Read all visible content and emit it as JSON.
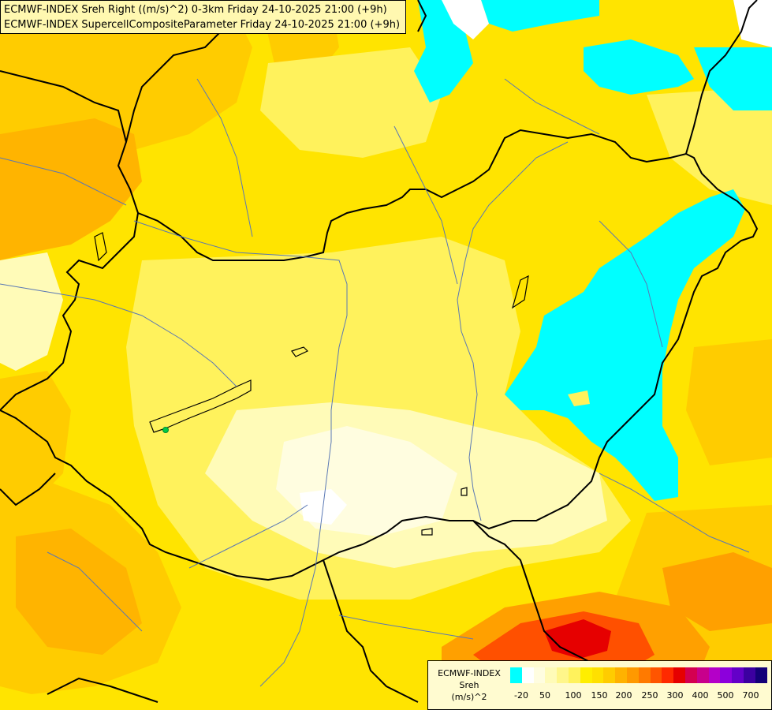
{
  "title": {
    "line1": "ECMWF-INDEX Sreh Right ((m/s)^2) 0-3km Friday 24-10-2025 21:00 (+9h)",
    "line2": "ECMWF-INDEX SupercellCompositeParameter Friday 24-10-2025 21:00 (+9h)"
  },
  "legend": {
    "line1": "ECMWF-INDEX",
    "line2": "Sreh",
    "line3": "(m/s)^2",
    "ticks": [
      "-20",
      "50",
      "100",
      "150",
      "200",
      "250",
      "300",
      "400",
      "500",
      "700"
    ],
    "colors": [
      "#00ffff",
      "#ffffff",
      "#fffde0",
      "#fffbb8",
      "#fff68a",
      "#fff25c",
      "#ffee00",
      "#ffe000",
      "#ffcc00",
      "#ffb200",
      "#ff9900",
      "#ff7a00",
      "#ff5500",
      "#ff2a00",
      "#e60000",
      "#d40050",
      "#c8008c",
      "#b400c8",
      "#8c00dc",
      "#6400c8",
      "#3c00a0",
      "#140078"
    ]
  },
  "map_colors": {
    "cyan": "#00ffff",
    "pale": "#fffdd0",
    "light_yellow": "#fff690",
    "yellow": "#ffee00",
    "dark_yellow": "#ffe000",
    "orange": "#ffc800",
    "deep_orange": "#ffa000",
    "red_orange": "#ff5000",
    "red": "#e60000",
    "border": "#000000",
    "river": "#5a78b4",
    "marker": "#00cc44"
  }
}
